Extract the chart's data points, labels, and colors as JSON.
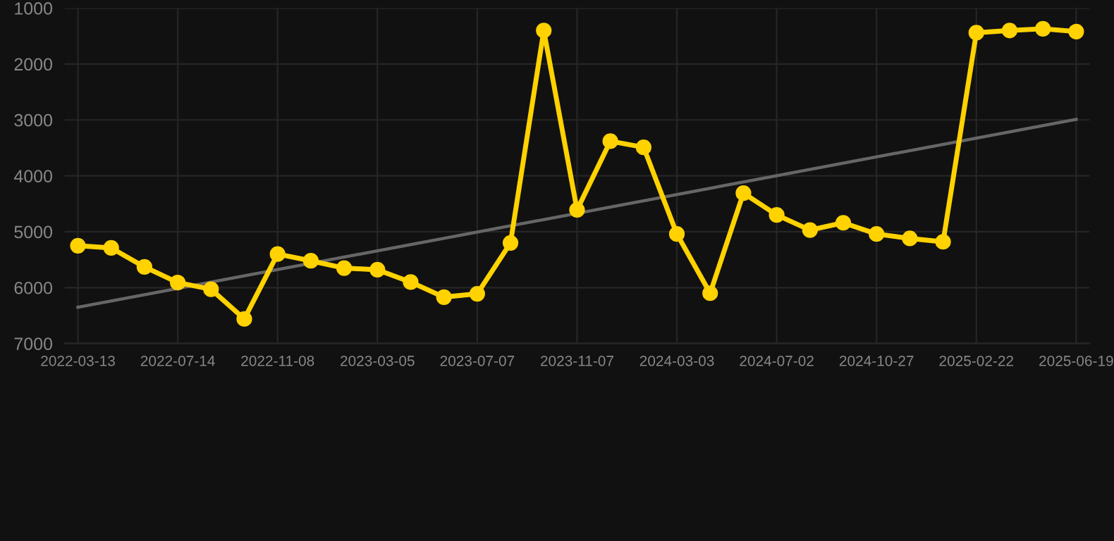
{
  "chart_data": {
    "type": "line",
    "categories": [
      "2022-03-13",
      null,
      null,
      "2022-07-14",
      null,
      null,
      "2022-11-08",
      null,
      null,
      "2023-03-05",
      null,
      null,
      "2023-07-07",
      null,
      null,
      "2023-11-07",
      null,
      null,
      "2024-03-03",
      null,
      null,
      "2024-07-02",
      null,
      null,
      "2024-10-27",
      null,
      null,
      "2025-02-22",
      null,
      null,
      "2025-06-19"
    ],
    "series": [
      {
        "color": "#ffd200",
        "marker": "circle",
        "values": [
          5250,
          5290,
          5630,
          5910,
          6030,
          6560,
          5400,
          5520,
          5650,
          5680,
          5900,
          6170,
          6110,
          5200,
          1400,
          4610,
          3380,
          3490,
          5040,
          6100,
          4310,
          4700,
          4970,
          4840,
          5040,
          5120,
          5180,
          1440,
          1400,
          1370,
          1420
        ]
      },
      {
        "type": "line",
        "color": "#666666",
        "marker": "none",
        "values": [
          6350,
          null,
          null,
          null,
          null,
          null,
          null,
          null,
          null,
          null,
          null,
          null,
          null,
          null,
          null,
          null,
          null,
          null,
          null,
          null,
          null,
          null,
          null,
          null,
          null,
          null,
          null,
          null,
          null,
          null,
          2990
        ]
      }
    ],
    "ylim": [
      7000,
      1000
    ],
    "yticks": [
      1000,
      2000,
      3000,
      4000,
      5000,
      6000,
      7000
    ],
    "grid": true
  }
}
